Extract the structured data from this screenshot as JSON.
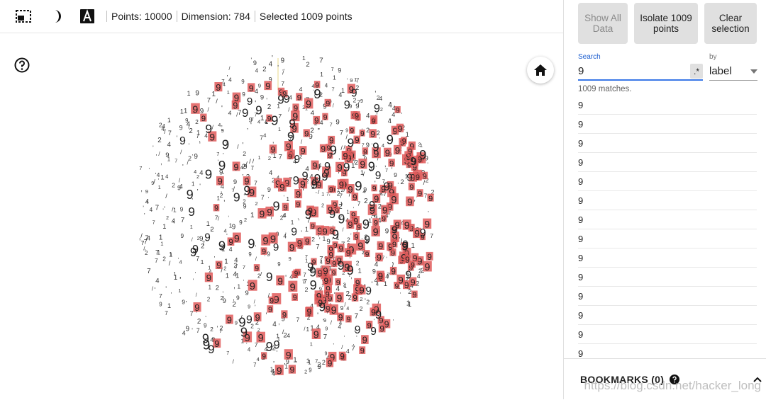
{
  "toolbar": {
    "icons": [
      "selection-box-icon",
      "night-mode-icon",
      "label-toggle-icon"
    ],
    "points_text": "Points: 10000",
    "dimension_text": "Dimension: 784",
    "selected_text": "Selected 1009 points"
  },
  "sidebar": {
    "show_all_label": "Show All Data",
    "isolate_label": "Isolate 1009 points",
    "clear_label": "Clear selection",
    "search_label": "Search",
    "search_value": "9",
    "regex_label": ".*",
    "by_label": "by",
    "by_value": "label",
    "match_count": "1009 matches.",
    "matches": [
      "9",
      "9",
      "9",
      "9",
      "9",
      "9",
      "9",
      "9",
      "9",
      "9",
      "9",
      "9",
      "9",
      "9"
    ],
    "bookmarks_title": "BOOKMARKS (0)"
  },
  "watermark": "https://blog.csdn.net/hacker_long",
  "colors": {
    "selected_highlight": "#e05a5a",
    "accent": "#3b78e7",
    "button_bg": "#e0e0e0"
  },
  "scatter": {
    "selected_label": "9",
    "unselected_marks": [
      "1",
      "7",
      "/",
      "'",
      ",",
      "4",
      "2",
      "9"
    ]
  }
}
